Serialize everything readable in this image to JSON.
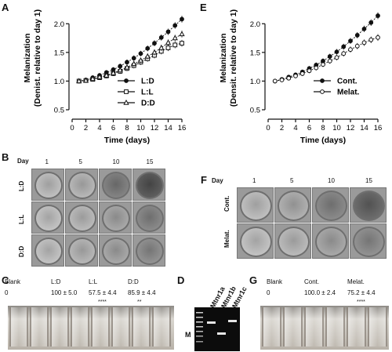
{
  "panels": {
    "A": "A",
    "B": "B",
    "C": "C",
    "D": "D",
    "E": "E",
    "F": "F",
    "G": "G"
  },
  "chart_data": [
    {
      "panel": "A",
      "type": "line",
      "ylabel_1": "Melanization",
      "ylabel_2": "(Denist. relative to day 1)",
      "xlabel": "Time (days)",
      "xlim": [
        0,
        16
      ],
      "ylim": [
        0.5,
        2.25
      ],
      "xticks": [
        0,
        2,
        4,
        6,
        8,
        10,
        12,
        14,
        16
      ],
      "yticks": [
        0.5,
        1.0,
        1.5,
        2.0
      ],
      "ytick_labels": [
        "0.5",
        "1.0",
        "1.5",
        "2.0"
      ],
      "legend_position": "bottom-right",
      "series": [
        {
          "name": "L:D",
          "marker": "filled-circle",
          "x": [
            1,
            2,
            3,
            4,
            5,
            6,
            7,
            8,
            9,
            10,
            11,
            12,
            13,
            14,
            15,
            16
          ],
          "y": [
            1.0,
            1.02,
            1.06,
            1.1,
            1.15,
            1.2,
            1.26,
            1.33,
            1.4,
            1.48,
            1.57,
            1.66,
            1.76,
            1.86,
            1.97,
            2.08
          ]
        },
        {
          "name": "L:L",
          "marker": "open-square",
          "x": [
            1,
            2,
            3,
            4,
            5,
            6,
            7,
            8,
            9,
            10,
            11,
            12,
            13,
            14,
            15,
            16
          ],
          "y": [
            1.0,
            1.01,
            1.03,
            1.06,
            1.09,
            1.13,
            1.17,
            1.22,
            1.27,
            1.33,
            1.39,
            1.45,
            1.52,
            1.58,
            1.63,
            1.66
          ]
        },
        {
          "name": "D:D",
          "marker": "open-triangle",
          "x": [
            1,
            2,
            3,
            4,
            5,
            6,
            7,
            8,
            9,
            10,
            11,
            12,
            13,
            14,
            15,
            16
          ],
          "y": [
            1.0,
            1.01,
            1.04,
            1.07,
            1.1,
            1.14,
            1.19,
            1.24,
            1.3,
            1.36,
            1.43,
            1.5,
            1.58,
            1.67,
            1.75,
            1.82
          ]
        }
      ]
    },
    {
      "panel": "E",
      "type": "line",
      "ylabel_1": "Melanization",
      "ylabel_2": "(Densit. relative to day 1)",
      "xlabel": "Time (days)",
      "xlim": [
        0,
        16
      ],
      "ylim": [
        0.5,
        2.25
      ],
      "xticks": [
        0,
        2,
        4,
        6,
        8,
        10,
        12,
        14,
        16
      ],
      "yticks": [
        0.5,
        1.0,
        1.5,
        2.0
      ],
      "ytick_labels": [
        "0.5",
        "1.0",
        "1.5",
        "2.0"
      ],
      "legend_position": "bottom-right",
      "series": [
        {
          "name": "Cont.",
          "marker": "filled-circle",
          "x": [
            1,
            2,
            3,
            4,
            5,
            6,
            7,
            8,
            9,
            10,
            11,
            12,
            13,
            14,
            15,
            16
          ],
          "y": [
            1.0,
            1.03,
            1.07,
            1.11,
            1.16,
            1.22,
            1.28,
            1.35,
            1.43,
            1.51,
            1.6,
            1.7,
            1.8,
            1.91,
            2.02,
            2.14
          ]
        },
        {
          "name": "Melat.",
          "marker": "open-circle",
          "x": [
            1,
            2,
            3,
            4,
            5,
            6,
            7,
            8,
            9,
            10,
            11,
            12,
            13,
            14,
            15,
            16
          ],
          "y": [
            1.0,
            1.02,
            1.05,
            1.09,
            1.13,
            1.18,
            1.23,
            1.29,
            1.35,
            1.41,
            1.48,
            1.55,
            1.61,
            1.67,
            1.72,
            1.76
          ]
        }
      ]
    }
  ],
  "panel_b": {
    "day_label": "Day",
    "days": [
      "1",
      "5",
      "10",
      "15"
    ],
    "rows": [
      "L:D",
      "L:L",
      "D:D"
    ],
    "darkness": [
      [
        0.15,
        0.2,
        0.55,
        0.8
      ],
      [
        0.12,
        0.18,
        0.3,
        0.5
      ],
      [
        0.12,
        0.2,
        0.3,
        0.45
      ]
    ]
  },
  "panel_f": {
    "day_label": "Day",
    "days": [
      "1",
      "5",
      "10",
      "15"
    ],
    "rows": [
      "Cont.",
      "Melat."
    ],
    "darkness": [
      [
        0.15,
        0.25,
        0.5,
        0.7
      ],
      [
        0.12,
        0.18,
        0.3,
        0.45
      ]
    ]
  },
  "panel_c": {
    "labels": [
      "Blank",
      "L:D",
      "L:L",
      "D:D"
    ],
    "values": [
      "0",
      "100 ± 5.0",
      "57.5 ± 4.4",
      "85.9 ± 4.4"
    ],
    "stars": [
      "",
      "",
      "****",
      "**"
    ]
  },
  "panel_d": {
    "marker": "M",
    "lanes": [
      "Mtnr1a",
      "Mtnr1b",
      "Mtnr1c"
    ]
  },
  "panel_g": {
    "labels": [
      "Blank",
      "Cont.",
      "Melat."
    ],
    "values": [
      "0",
      "100.0 ± 2.4",
      "75.2 ± 4.4"
    ],
    "stars": [
      "",
      "",
      "****"
    ]
  }
}
